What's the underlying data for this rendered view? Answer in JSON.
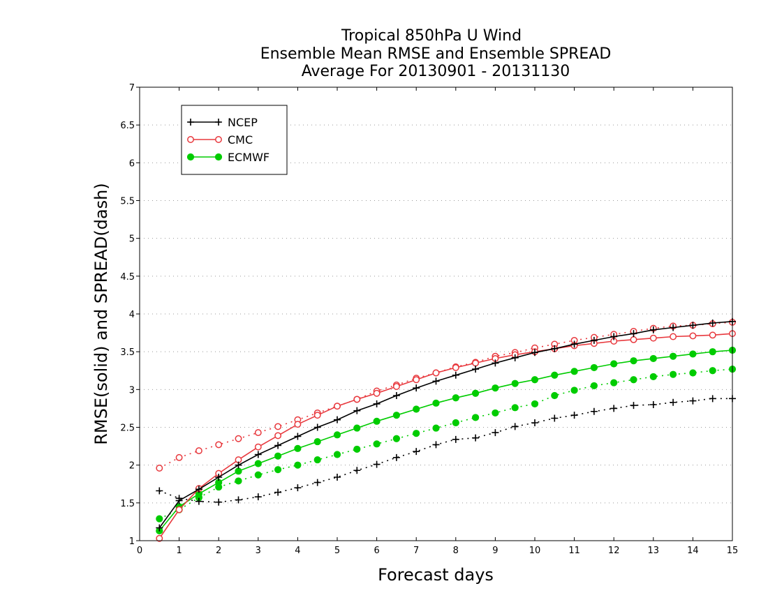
{
  "chart_data": {
    "type": "line",
    "title": [
      "Tropical 850hPa U Wind",
      "Ensemble Mean RMSE and Ensemble SPREAD",
      "Average For 20130901 - 20131130"
    ],
    "xlabel": "Forecast days",
    "ylabel": "RMSE(solid) and SPREAD(dash)",
    "xlim": [
      0,
      15
    ],
    "ylim": [
      1,
      7
    ],
    "xticks": [
      0,
      1,
      2,
      3,
      4,
      5,
      6,
      7,
      8,
      9,
      10,
      11,
      12,
      13,
      14,
      15
    ],
    "yticks": [
      1,
      1.5,
      2,
      2.5,
      3,
      3.5,
      4,
      4.5,
      5,
      5.5,
      6,
      6.5,
      7
    ],
    "ytick_labels": [
      "1",
      "1.5",
      "2",
      "2.5",
      "3",
      "3.5",
      "4",
      "4.5",
      "5",
      "5.5",
      "6",
      "6.5",
      "7"
    ],
    "grid": true,
    "legend_position": "top-left",
    "x": [
      0.5,
      1,
      1.5,
      2,
      2.5,
      3,
      3.5,
      4,
      4.5,
      5,
      5.5,
      6,
      6.5,
      7,
      7.5,
      8,
      8.5,
      9,
      9.5,
      10,
      10.5,
      11,
      11.5,
      12,
      12.5,
      13,
      13.5,
      14,
      14.5,
      15
    ],
    "series": [
      {
        "name": "NCEP",
        "color": "#000000",
        "marker": "plus",
        "rmse": [
          1.17,
          1.53,
          1.68,
          1.84,
          2.0,
          2.14,
          2.26,
          2.38,
          2.5,
          2.6,
          2.72,
          2.81,
          2.92,
          3.02,
          3.11,
          3.19,
          3.27,
          3.35,
          3.42,
          3.49,
          3.54,
          3.6,
          3.65,
          3.7,
          3.74,
          3.79,
          3.82,
          3.85,
          3.88,
          3.9
        ],
        "spread": [
          1.66,
          1.56,
          1.52,
          1.51,
          1.54,
          1.58,
          1.64,
          1.7,
          1.77,
          1.84,
          1.93,
          2.01,
          2.1,
          2.18,
          2.27,
          2.34,
          2.36,
          2.43,
          2.51,
          2.56,
          2.62,
          2.66,
          2.71,
          2.75,
          2.79,
          2.8,
          2.83,
          2.85,
          2.88,
          2.88
        ]
      },
      {
        "name": "CMC",
        "color": "#e8383d",
        "marker": "open-circle",
        "rmse": [
          1.03,
          1.41,
          1.69,
          1.89,
          2.07,
          2.24,
          2.39,
          2.54,
          2.66,
          2.78,
          2.87,
          2.95,
          3.04,
          3.13,
          3.22,
          3.29,
          3.35,
          3.41,
          3.46,
          3.5,
          3.54,
          3.58,
          3.61,
          3.64,
          3.66,
          3.68,
          3.7,
          3.71,
          3.72,
          3.74
        ],
        "spread": [
          1.96,
          2.1,
          2.19,
          2.27,
          2.35,
          2.43,
          2.51,
          2.6,
          2.69,
          2.78,
          2.87,
          2.98,
          3.06,
          3.15,
          3.22,
          3.3,
          3.36,
          3.44,
          3.49,
          3.55,
          3.6,
          3.65,
          3.69,
          3.73,
          3.77,
          3.81,
          3.84,
          3.85,
          3.87,
          3.89
        ]
      },
      {
        "name": "ECMWF",
        "color": "#00cc00",
        "marker": "filled-circle",
        "rmse": [
          1.13,
          1.45,
          1.62,
          1.77,
          1.92,
          2.02,
          2.12,
          2.22,
          2.31,
          2.4,
          2.49,
          2.58,
          2.66,
          2.74,
          2.82,
          2.89,
          2.95,
          3.02,
          3.08,
          3.13,
          3.19,
          3.24,
          3.29,
          3.34,
          3.38,
          3.41,
          3.44,
          3.47,
          3.5,
          3.52
        ],
        "spread": [
          1.29,
          1.41,
          1.57,
          1.71,
          1.79,
          1.87,
          1.94,
          2.0,
          2.07,
          2.14,
          2.21,
          2.28,
          2.35,
          2.42,
          2.49,
          2.56,
          2.63,
          2.69,
          2.76,
          2.81,
          2.92,
          2.99,
          3.05,
          3.09,
          3.13,
          3.17,
          3.2,
          3.22,
          3.25,
          3.27
        ]
      }
    ]
  }
}
